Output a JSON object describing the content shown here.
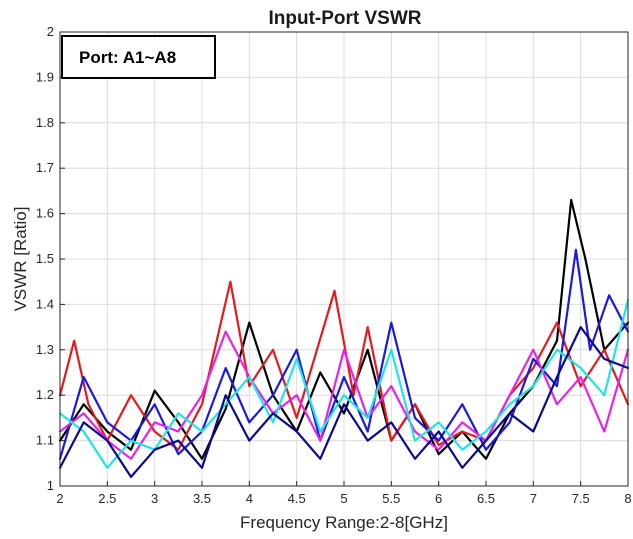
{
  "chart_data": {
    "type": "line",
    "title": "Input-Port VSWR",
    "xlabel": "Frequency Range:2-8[GHz]",
    "ylabel": "VSWR [Ratio]",
    "xlim": [
      2,
      8
    ],
    "ylim": [
      1,
      2
    ],
    "xticks": [
      "2",
      "2.5",
      "3",
      "3.5",
      "4",
      "4.5",
      "5",
      "5.5",
      "6",
      "6.5",
      "7",
      "7.5",
      "8"
    ],
    "yticks": [
      "1",
      "1.1",
      "1.2",
      "1.3",
      "1.4",
      "1.5",
      "1.6",
      "1.7",
      "1.8",
      "1.9",
      "2"
    ],
    "grid": true,
    "annotation": "Port: A1~A8",
    "series": [
      {
        "color": "#000000",
        "x": [
          2.0,
          2.25,
          2.5,
          2.75,
          3.0,
          3.25,
          3.5,
          3.75,
          4.0,
          4.25,
          4.5,
          4.75,
          5.0,
          5.25,
          5.5,
          5.75,
          6.0,
          6.25,
          6.5,
          6.75,
          7.0,
          7.25,
          7.4,
          7.55,
          7.75,
          8.0
        ],
        "y": [
          1.1,
          1.18,
          1.12,
          1.08,
          1.21,
          1.14,
          1.06,
          1.17,
          1.36,
          1.2,
          1.12,
          1.25,
          1.16,
          1.3,
          1.1,
          1.18,
          1.07,
          1.12,
          1.06,
          1.16,
          1.22,
          1.32,
          1.63,
          1.5,
          1.3,
          1.36
        ]
      },
      {
        "color": "#e41a1c",
        "x": [
          2.0,
          2.15,
          2.3,
          2.5,
          2.75,
          3.0,
          3.25,
          3.5,
          3.8,
          4.0,
          4.25,
          4.5,
          4.9,
          5.1,
          5.25,
          5.5,
          5.75,
          6.0,
          6.25,
          6.5,
          6.75,
          7.0,
          7.25,
          7.5,
          7.75,
          8.0
        ],
        "y": [
          1.2,
          1.32,
          1.18,
          1.1,
          1.2,
          1.12,
          1.08,
          1.18,
          1.45,
          1.22,
          1.3,
          1.15,
          1.43,
          1.2,
          1.35,
          1.1,
          1.18,
          1.09,
          1.12,
          1.1,
          1.2,
          1.26,
          1.36,
          1.22,
          1.3,
          1.18
        ]
      },
      {
        "color": "#1a1adf",
        "x": [
          2.0,
          2.25,
          2.5,
          2.75,
          3.0,
          3.25,
          3.5,
          3.75,
          4.0,
          4.25,
          4.5,
          4.75,
          5.0,
          5.25,
          5.5,
          5.75,
          6.0,
          6.25,
          6.5,
          6.75,
          7.0,
          7.25,
          7.45,
          7.6,
          7.8,
          8.0
        ],
        "y": [
          1.06,
          1.24,
          1.14,
          1.1,
          1.18,
          1.07,
          1.12,
          1.26,
          1.14,
          1.2,
          1.3,
          1.1,
          1.24,
          1.12,
          1.36,
          1.15,
          1.1,
          1.18,
          1.08,
          1.14,
          1.28,
          1.22,
          1.52,
          1.3,
          1.42,
          1.34
        ]
      },
      {
        "color": "#e822e8",
        "x": [
          2.0,
          2.25,
          2.5,
          2.75,
          3.0,
          3.25,
          3.5,
          3.75,
          4.0,
          4.25,
          4.5,
          4.75,
          5.0,
          5.25,
          5.5,
          5.75,
          6.0,
          6.25,
          6.5,
          6.75,
          7.0,
          7.25,
          7.5,
          7.75,
          8.0
        ],
        "y": [
          1.12,
          1.16,
          1.1,
          1.06,
          1.14,
          1.12,
          1.2,
          1.34,
          1.24,
          1.16,
          1.2,
          1.1,
          1.3,
          1.15,
          1.22,
          1.12,
          1.08,
          1.14,
          1.1,
          1.2,
          1.3,
          1.18,
          1.24,
          1.12,
          1.3
        ]
      },
      {
        "color": "#1ee5e5",
        "x": [
          2.0,
          2.25,
          2.5,
          2.75,
          3.0,
          3.25,
          3.5,
          3.75,
          4.0,
          4.25,
          4.5,
          4.75,
          5.0,
          5.25,
          5.5,
          5.75,
          6.0,
          6.25,
          6.5,
          6.75,
          7.0,
          7.25,
          7.5,
          7.75,
          8.0
        ],
        "y": [
          1.16,
          1.12,
          1.04,
          1.1,
          1.08,
          1.16,
          1.12,
          1.18,
          1.24,
          1.14,
          1.28,
          1.12,
          1.2,
          1.15,
          1.3,
          1.1,
          1.14,
          1.08,
          1.12,
          1.18,
          1.22,
          1.3,
          1.26,
          1.2,
          1.41
        ]
      },
      {
        "color": "#0a0a8c",
        "x": [
          2.0,
          2.25,
          2.5,
          2.75,
          3.0,
          3.25,
          3.5,
          3.75,
          4.0,
          4.25,
          4.5,
          4.75,
          5.0,
          5.25,
          5.5,
          5.75,
          6.0,
          6.25,
          6.5,
          6.75,
          7.0,
          7.25,
          7.5,
          7.75,
          8.0
        ],
        "y": [
          1.04,
          1.14,
          1.1,
          1.02,
          1.08,
          1.1,
          1.04,
          1.2,
          1.1,
          1.16,
          1.12,
          1.06,
          1.18,
          1.1,
          1.14,
          1.06,
          1.12,
          1.04,
          1.1,
          1.16,
          1.12,
          1.24,
          1.35,
          1.28,
          1.26
        ]
      }
    ]
  }
}
